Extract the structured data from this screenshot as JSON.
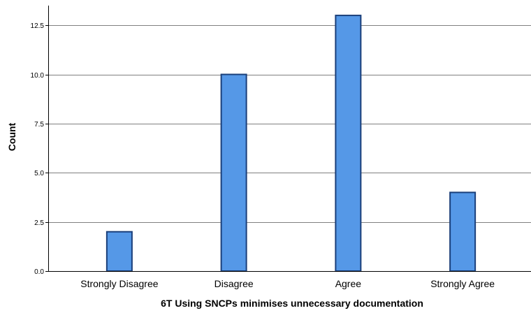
{
  "chart_data": {
    "type": "bar",
    "title": "",
    "xlabel": "6T Using SNCPs minimises unnecessary documentation",
    "ylabel": "Count",
    "categories": [
      "Strongly Disagree",
      "Disagree",
      "Agree",
      "Strongly Agree"
    ],
    "values": [
      2,
      10,
      13,
      4
    ],
    "ylim": [
      0,
      13.5
    ],
    "yticks": [
      0.0,
      2.5,
      5.0,
      7.5,
      10.0,
      12.5
    ],
    "ytick_labels": [
      "0.0",
      "2.5",
      "5.0",
      "7.5",
      "10.0",
      "12.5"
    ],
    "grid": "horizontal",
    "legend": "none",
    "colors": {
      "bar_fill": "#5598E7",
      "bar_stroke": "#1A3F7A",
      "grid": "#808080",
      "axis": "#000000"
    }
  }
}
